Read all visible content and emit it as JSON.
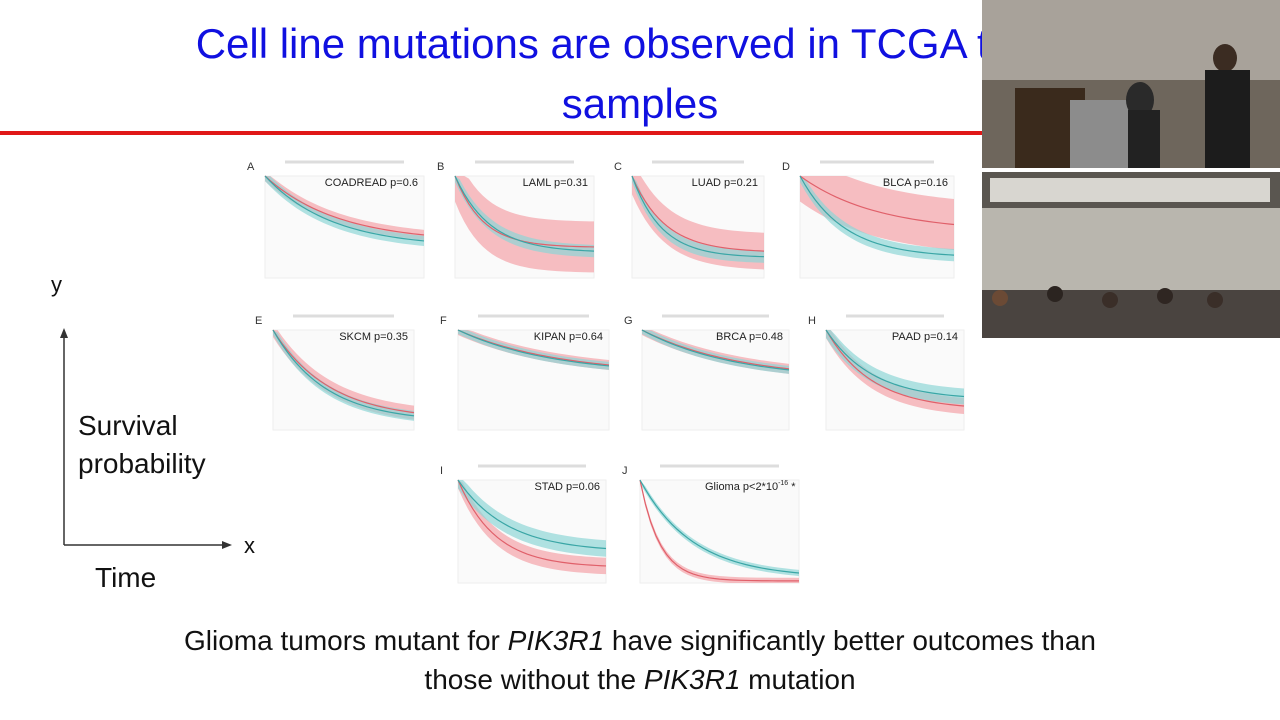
{
  "slide": {
    "title": {
      "line1": "Cell line mutations are observed in TCGA tumor",
      "line2": "samples"
    },
    "axis": {
      "y": "y",
      "x": "x",
      "y_label_line1": "Survival",
      "y_label_line2": "probability",
      "x_label": "Time"
    },
    "panels": [
      {
        "letter": "A",
        "label": "COADREAD p=0.6"
      },
      {
        "letter": "B",
        "label": "LAML  p=0.31"
      },
      {
        "letter": "C",
        "label": "LUAD  p=0.21"
      },
      {
        "letter": "D",
        "label": "BLCA p=0.16"
      },
      {
        "letter": "E",
        "label": "SKCM p=0.35"
      },
      {
        "letter": "F",
        "label": "KIPAN  p=0.64"
      },
      {
        "letter": "G",
        "label": "BRCA  p=0.48"
      },
      {
        "letter": "H",
        "label": "PAAD  p=0.14"
      },
      {
        "letter": "I",
        "label": "STAD  p=0.06"
      },
      {
        "letter": "J",
        "label": "Glioma  p<2*10",
        "exponent": "-16",
        "suffix": " *"
      }
    ],
    "caption": {
      "line1": [
        "Glioma tumors mutant for ",
        "PIK3R1",
        " have significantly better outcomes than"
      ],
      "line2": [
        "those without the ",
        "PIK3R1",
        " mutation"
      ]
    }
  }
}
